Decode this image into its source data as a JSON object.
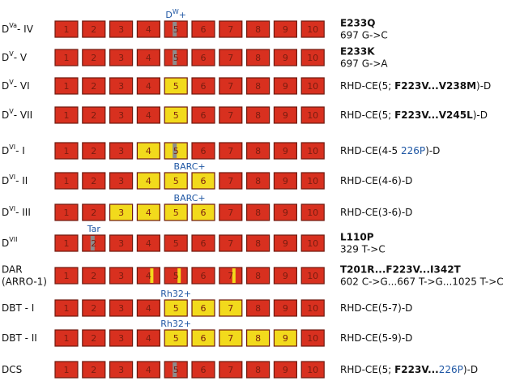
{
  "exon_labels": [
    "1",
    "2",
    "3",
    "4",
    "5",
    "6",
    "7",
    "8",
    "9",
    "10"
  ],
  "rows": [
    {
      "label": [
        [
          {
            "text": "D"
          },
          {
            "text": "Va",
            "sup": true
          },
          {
            "text": "- IV"
          }
        ]
      ],
      "exons": [
        "red",
        "red",
        "red",
        "red",
        "red-grey",
        "red",
        "red",
        "red",
        "red",
        "red"
      ],
      "annotation": {
        "runs": [
          {
            "text": "D"
          },
          {
            "text": "W",
            "sup": true
          },
          {
            "text": "+"
          }
        ],
        "over": [
          5
        ]
      },
      "desc": [
        [
          {
            "text": "E233Q",
            "bold": true
          }
        ],
        [
          {
            "text": "697 G->C"
          }
        ]
      ]
    },
    {
      "label": [
        [
          {
            "text": "D"
          },
          {
            "text": "V",
            "sup": true
          },
          {
            "text": "- V"
          }
        ]
      ],
      "exons": [
        "red",
        "red",
        "red",
        "red",
        "red-grey",
        "red",
        "red",
        "red",
        "red",
        "red"
      ],
      "desc": [
        [
          {
            "text": "E233K",
            "bold": true
          }
        ],
        [
          {
            "text": "697 G->A"
          }
        ]
      ]
    },
    {
      "label": [
        [
          {
            "text": "D"
          },
          {
            "text": "V",
            "sup": true
          },
          {
            "text": "- VI"
          }
        ]
      ],
      "exons": [
        "red",
        "red",
        "red",
        "red",
        "yellow",
        "red",
        "red",
        "red",
        "red",
        "red"
      ],
      "desc": [
        [
          {
            "text": "RHD-CE(5; "
          },
          {
            "text": "F223V...V238M",
            "bold": true
          },
          {
            "text": ")-D"
          }
        ]
      ]
    },
    {
      "label": [
        [
          {
            "text": "D"
          },
          {
            "text": "V",
            "sup": true
          },
          {
            "text": "- VII"
          }
        ]
      ],
      "exons": [
        "red",
        "red",
        "red",
        "red",
        "yellow",
        "red",
        "red",
        "red",
        "red",
        "red"
      ],
      "desc": [
        [
          {
            "text": "RHD-CE(5; "
          },
          {
            "text": "F223V...V245L",
            "bold": true
          },
          {
            "text": ")-D"
          }
        ]
      ]
    },
    {
      "label": [
        [
          {
            "text": "D"
          },
          {
            "text": "VI",
            "sup": true
          },
          {
            "text": "- I"
          }
        ]
      ],
      "exons": [
        "red",
        "red",
        "red",
        "yellow",
        "yellow-grey",
        "red",
        "red",
        "red",
        "red",
        "red"
      ],
      "desc": [
        [
          {
            "text": "RHD-CE(4-5 "
          },
          {
            "text": "226P",
            "blue": true
          },
          {
            "text": ")-D"
          }
        ]
      ]
    },
    {
      "label": [
        [
          {
            "text": "D"
          },
          {
            "text": "VI",
            "sup": true
          },
          {
            "text": "- II"
          }
        ]
      ],
      "exons": [
        "red",
        "red",
        "red",
        "yellow",
        "yellow",
        "yellow",
        "red",
        "red",
        "red",
        "red"
      ],
      "annotation": {
        "runs": [
          {
            "text": "BARC+"
          }
        ],
        "over": [
          5,
          6
        ]
      },
      "desc": [
        [
          {
            "text": "RHD-CE(4-6)-D"
          }
        ]
      ]
    },
    {
      "label": [
        [
          {
            "text": "D"
          },
          {
            "text": "VI",
            "sup": true
          },
          {
            "text": "- III"
          }
        ]
      ],
      "exons": [
        "red",
        "red",
        "yellow",
        "yellow",
        "yellow",
        "yellow",
        "red",
        "red",
        "red",
        "red"
      ],
      "annotation": {
        "runs": [
          {
            "text": "BARC+"
          }
        ],
        "over": [
          5,
          6
        ]
      },
      "desc": [
        [
          {
            "text": "RHD-CE(3-6)-D"
          }
        ]
      ]
    },
    {
      "label": [
        [
          {
            "text": "D"
          },
          {
            "text": "VII",
            "sup": true
          }
        ]
      ],
      "exons": [
        "red",
        "red-grey",
        "red",
        "red",
        "red",
        "red",
        "red",
        "red",
        "red",
        "red"
      ],
      "annotation": {
        "runs": [
          {
            "text": "Tar"
          }
        ],
        "over": [
          2
        ]
      },
      "desc": [
        [
          {
            "text": "L110P",
            "bold": true
          }
        ],
        [
          {
            "text": "329 T->C"
          }
        ]
      ]
    },
    {
      "label": [
        [
          {
            "text": "DAR"
          }
        ],
        [
          {
            "text": "(ARRO-1)"
          }
        ]
      ],
      "exons": [
        "red",
        "red",
        "red",
        "red-yellow",
        "red-yellow",
        "red",
        "red-yellow",
        "red",
        "red",
        "red"
      ],
      "desc": [
        [
          {
            "text": "T201R...F223V...I342T",
            "bold": true
          }
        ],
        [
          {
            "text": "602 C->G...667 T->G...1025 T->C"
          }
        ]
      ]
    },
    {
      "label": [
        [
          {
            "text": "DBT - I"
          }
        ]
      ],
      "exons": [
        "red",
        "red",
        "red",
        "red",
        "yellow",
        "yellow",
        "yellow",
        "red",
        "red",
        "red"
      ],
      "annotation": {
        "runs": [
          {
            "text": "Rh32+"
          }
        ],
        "over": [
          5
        ]
      },
      "desc": [
        [
          {
            "text": "RHD-CE(5-7)-D"
          }
        ]
      ]
    },
    {
      "label": [
        [
          {
            "text": "DBT - II"
          }
        ]
      ],
      "exons": [
        "red",
        "red",
        "red",
        "red",
        "yellow",
        "yellow",
        "yellow",
        "yellow",
        "yellow",
        "red"
      ],
      "annotation": {
        "runs": [
          {
            "text": "Rh32+"
          }
        ],
        "over": [
          5
        ]
      },
      "desc": [
        [
          {
            "text": "RHD-CE(5-9)-D"
          }
        ]
      ]
    },
    {
      "label": [
        [
          {
            "text": "DCS"
          }
        ]
      ],
      "exons": [
        "red",
        "red",
        "red",
        "red",
        "red-grey",
        "red",
        "red",
        "red",
        "red",
        "red"
      ],
      "desc": [
        [
          {
            "text": "RHD-CE(5; "
          },
          {
            "text": "F223V...",
            "bold": true
          },
          {
            "text": "226P",
            "blue": true
          },
          {
            "text": ")-D"
          }
        ]
      ]
    }
  ]
}
